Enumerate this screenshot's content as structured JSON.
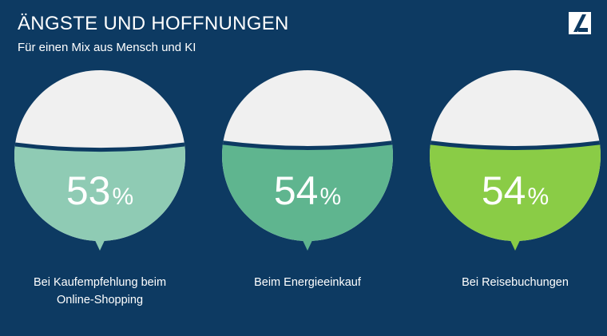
{
  "header": {
    "title": "ÄNGSTE UND HOFFNUNGEN",
    "subtitle": "Für einen Mix aus Mensch und KI"
  },
  "logo": {
    "icon": "brand-logo-icon"
  },
  "colors": {
    "background": "#0d3a62",
    "empty": "#f0f0f0",
    "series": [
      "#8fcbb4",
      "#5fb58f",
      "#8acc46"
    ]
  },
  "chart_data": {
    "type": "pie",
    "unit": "%",
    "items": [
      {
        "label": [
          "Bei Kaufempfehlung beim",
          "Online-Shopping"
        ],
        "value": 53
      },
      {
        "label": [
          "Beim Energieeinkauf"
        ],
        "value": 54
      },
      {
        "label": [
          "Bei Reisebuchungen"
        ],
        "value": 54
      }
    ]
  }
}
